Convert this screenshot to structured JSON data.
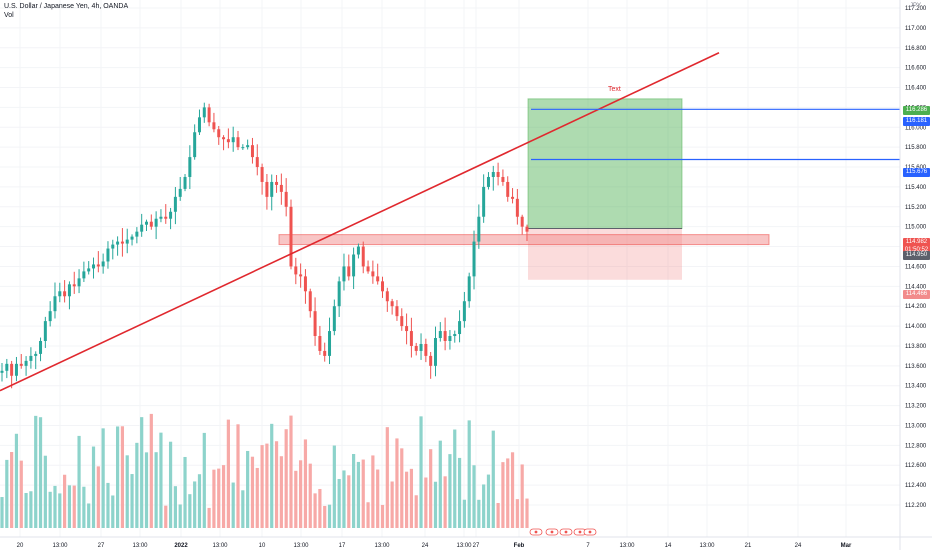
{
  "header": {
    "symbol_title": "U.S. Dollar / Japanese Yen, 4h, OANDA",
    "volume_label": "Vol",
    "currency": "JPY"
  },
  "annotations": {
    "text_label": "Text"
  },
  "price_tags": {
    "target": "116.286",
    "blue_upper": "116.181",
    "blue_lower": "115.676",
    "current_price": "114.982",
    "countdown": "01:50:52",
    "current_close": "114.950",
    "stop": "114.466"
  },
  "colors": {
    "up": "#26a69a",
    "down": "#ef5350",
    "trendline": "#e0282e",
    "blue_line": "#2962ff",
    "profit_zone": "#4caf50",
    "loss_zone": "#f28b8b",
    "volume_up": "#8dd3cb",
    "volume_down": "#f7a9a7"
  },
  "chart_data": {
    "type": "candlestick",
    "title": "U.S. Dollar / Japanese Yen, 4h, OANDA",
    "y_axis_ticks": [
      "117.200",
      "117.000",
      "116.800",
      "116.600",
      "116.400",
      "116.200",
      "116.000",
      "115.800",
      "115.600",
      "115.400",
      "115.200",
      "115.000",
      "114.800",
      "114.600",
      "114.400",
      "114.200",
      "114.000",
      "113.800",
      "113.600",
      "113.400",
      "113.200",
      "113.000",
      "112.800",
      "112.600",
      "112.400",
      "112.200"
    ],
    "x_axis_ticks": [
      "20",
      "13:00",
      "27",
      "13:00",
      "2022",
      "13:00",
      "10",
      "13:00",
      "17",
      "13:00",
      "24",
      "13:00",
      "27",
      "Feb",
      "7",
      "13:00",
      "14",
      "13:00",
      "21",
      "24",
      "Mar"
    ],
    "ylim": [
      112.1,
      117.3
    ],
    "close_path": [
      113.55,
      113.62,
      113.5,
      113.62,
      113.6,
      113.65,
      113.7,
      113.72,
      113.85,
      114.05,
      114.15,
      114.3,
      114.35,
      114.3,
      114.42,
      114.4,
      114.48,
      114.55,
      114.58,
      114.62,
      114.6,
      114.65,
      114.78,
      114.82,
      114.85,
      114.83,
      114.87,
      114.9,
      114.95,
      115.02,
      115.05,
      115.0,
      115.08,
      115.1,
      115.08,
      115.15,
      115.3,
      115.38,
      115.5,
      115.7,
      115.95,
      116.1,
      116.2,
      116.05,
      115.98,
      115.9,
      115.88,
      115.85,
      115.9,
      115.8,
      115.8,
      115.82,
      115.7,
      115.6,
      115.45,
      115.3,
      115.45,
      115.42,
      115.35,
      115.2,
      114.6,
      114.52,
      114.5,
      114.35,
      114.15,
      113.9,
      113.75,
      113.7,
      113.95,
      114.2,
      114.45,
      114.6,
      114.5,
      114.72,
      114.8,
      114.6,
      114.55,
      114.5,
      114.45,
      114.35,
      114.25,
      114.2,
      114.1,
      114.0,
      113.95,
      113.8,
      113.75,
      113.82,
      113.7,
      113.6,
      113.88,
      113.95,
      113.85,
      113.9,
      113.92,
      114.05,
      114.25,
      114.5,
      114.85,
      115.1,
      115.4,
      115.5,
      115.55,
      115.5,
      115.45,
      115.3,
      115.28,
      115.1,
      115.0,
      114.95
    ],
    "volume_label": "Vol",
    "drawings": {
      "trendline": {
        "from_price": 113.35,
        "to_price": 116.75
      },
      "horizontal_lines": [
        116.181,
        115.676
      ],
      "position": {
        "entry": 114.982,
        "target": 116.286,
        "stop": 114.466
      },
      "support_zone": [
        114.82,
        114.92
      ]
    }
  }
}
